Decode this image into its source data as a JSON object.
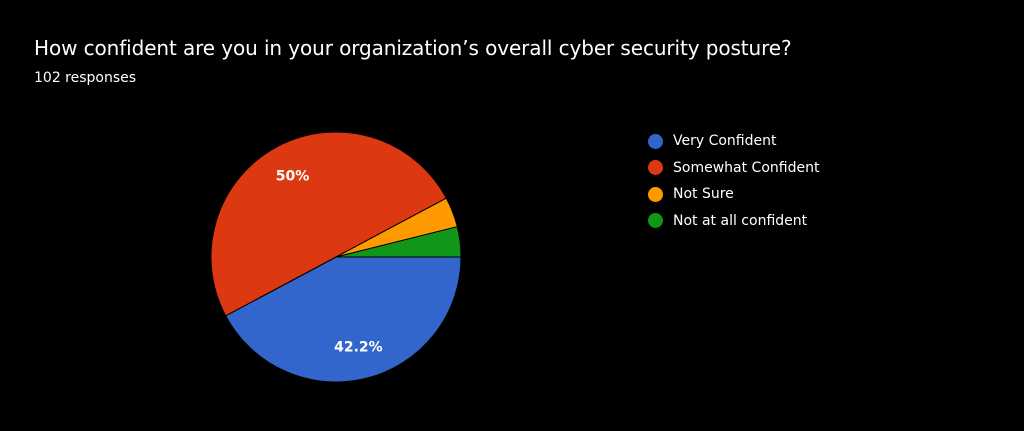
{
  "header": {
    "title": "How confident are you in your organization’s overall cyber security posture?",
    "subtitle": "102 responses"
  },
  "chart_data": {
    "type": "pie",
    "title": "How confident are you in your organization’s overall cyber security posture?",
    "categories": [
      "Very Confident",
      "Somewhat Confident",
      "Not Sure",
      "Not at all confident"
    ],
    "values": [
      42.2,
      50,
      3.9,
      3.9
    ],
    "colors": [
      "#3366cc",
      "#dc3912",
      "#ff9900",
      "#109618"
    ],
    "data_labels": [
      "42.2%",
      "50%",
      "",
      ""
    ],
    "legend_position": "right"
  }
}
